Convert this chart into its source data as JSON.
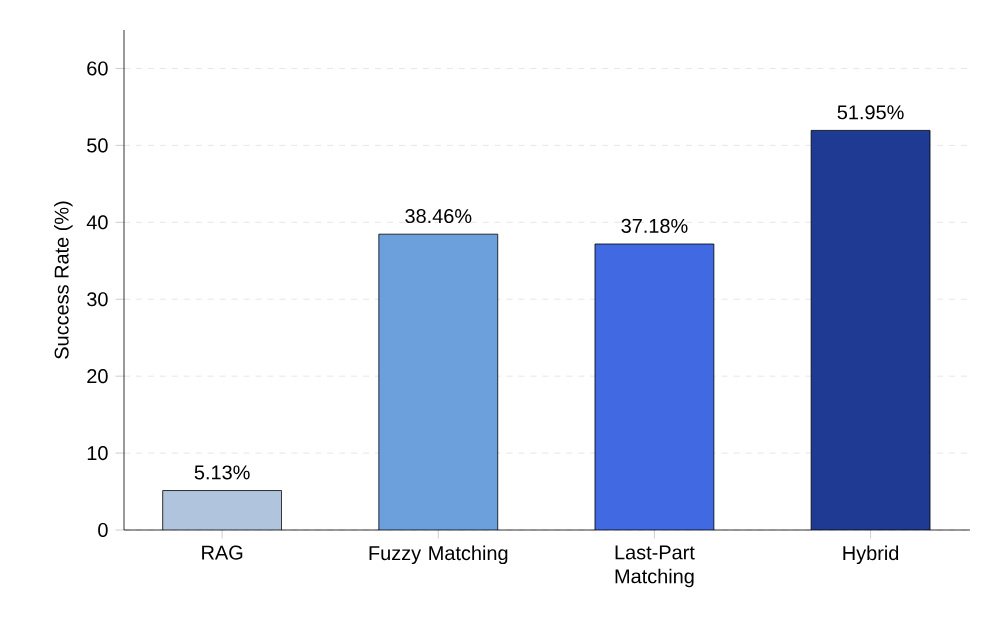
{
  "chart_data": {
    "type": "bar",
    "ylabel": "Success Rate (%)",
    "categories": [
      "RAG",
      "Fuzzy Matching",
      "Last-Part Matching",
      "Hybrid"
    ],
    "values": [
      5.13,
      38.46,
      37.18,
      51.95
    ],
    "colors": [
      "#b0c4de",
      "#6ca0dc",
      "#4169e1",
      "#1f3a93"
    ],
    "value_labels": [
      "5.13%",
      "38.46%",
      "37.18%",
      "51.95%"
    ],
    "ylim": [
      0,
      65
    ],
    "yticks": [
      0,
      10,
      20,
      30,
      40,
      50,
      60
    ],
    "grid": "y"
  }
}
